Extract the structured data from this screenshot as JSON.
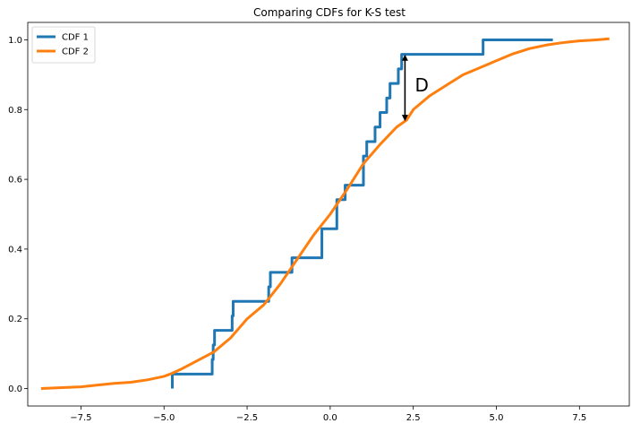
{
  "chart_data": {
    "type": "line",
    "title": "Comparing CDFs for K-S test",
    "xlabel": "",
    "ylabel": "",
    "xlim": [
      -9.1,
      9.0
    ],
    "ylim": [
      -0.05,
      1.05
    ],
    "xticks": [
      -7.5,
      -5.0,
      -2.5,
      0.0,
      2.5,
      5.0,
      7.5
    ],
    "xtick_labels": [
      "−7.5",
      "−5.0",
      "−2.5",
      "0.0",
      "2.5",
      "5.0",
      "7.5"
    ],
    "yticks": [
      0.0,
      0.2,
      0.4,
      0.6,
      0.8,
      1.0
    ],
    "ytick_labels": [
      "0.0",
      "0.2",
      "0.4",
      "0.6",
      "0.8",
      "1.0"
    ],
    "grid": false,
    "legend_position": "upper-left",
    "series": [
      {
        "name": "CDF 1",
        "color": "#1f77b4",
        "drawstyle": "steps-post",
        "x": [
          -4.75,
          -4.75,
          -3.55,
          -3.52,
          -3.48,
          -3.45,
          -2.95,
          -2.92,
          -1.85,
          -1.8,
          -1.6,
          -1.15,
          -0.25,
          0.2,
          0.45,
          0.5,
          1.0,
          1.1,
          1.35,
          1.5,
          1.7,
          1.8,
          1.9,
          2.05,
          2.15,
          2.2,
          4.6,
          6.7
        ],
        "y": [
          0.0,
          0.0417,
          0.0833,
          0.125,
          0.1667,
          0.1667,
          0.2083,
          0.25,
          0.2917,
          0.3333,
          0.3333,
          0.375,
          0.4583,
          0.5417,
          0.5833,
          0.5833,
          0.6667,
          0.7083,
          0.75,
          0.7917,
          0.8333,
          0.875,
          0.875,
          0.9167,
          0.9583,
          0.9583,
          1.0,
          1.0
        ]
      },
      {
        "name": "CDF 2",
        "color": "#ff7f0e",
        "drawstyle": "line",
        "x": [
          -8.7,
          -8.0,
          -7.5,
          -7.0,
          -6.5,
          -6.0,
          -5.5,
          -5.0,
          -4.8,
          -4.5,
          -4.0,
          -3.5,
          -3.0,
          -2.5,
          -2.0,
          -1.5,
          -1.0,
          -0.5,
          0.0,
          0.5,
          1.0,
          1.5,
          2.0,
          2.3,
          2.5,
          3.0,
          3.5,
          4.0,
          4.5,
          5.0,
          5.5,
          6.0,
          6.5,
          7.0,
          7.5,
          8.0,
          8.4
        ],
        "y": [
          0.0,
          0.003,
          0.005,
          0.01,
          0.015,
          0.018,
          0.025,
          0.035,
          0.042,
          0.055,
          0.08,
          0.105,
          0.145,
          0.2,
          0.24,
          0.3,
          0.37,
          0.44,
          0.5,
          0.57,
          0.645,
          0.7,
          0.75,
          0.77,
          0.8,
          0.84,
          0.87,
          0.9,
          0.92,
          0.94,
          0.96,
          0.975,
          0.985,
          0.992,
          0.997,
          1.0,
          1.003
        ]
      }
    ],
    "annotations": [
      {
        "type": "double-arrow",
        "x": 2.25,
        "y_start": 0.767,
        "y_end": 0.958,
        "text": "D",
        "text_x": 2.55,
        "text_y": 0.87
      }
    ]
  }
}
